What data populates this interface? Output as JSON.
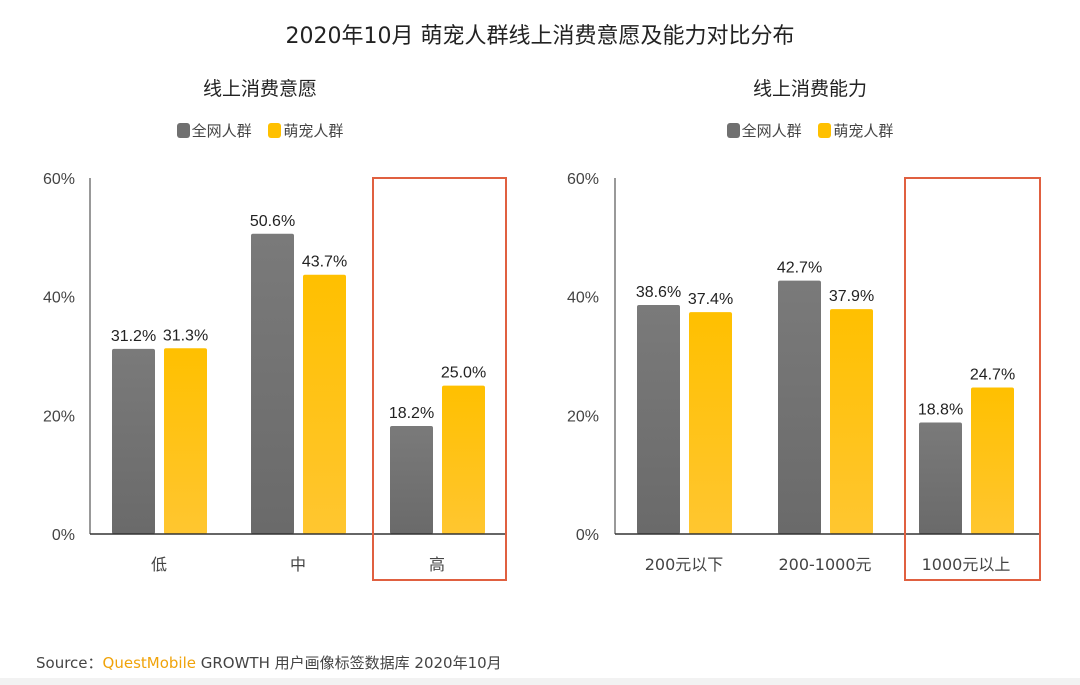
{
  "title": "2020年10月 萌宠人群线上消费意愿及能力对比分布",
  "colors": {
    "all": "#707070",
    "pet": "#ffc000",
    "highlight": "#e06040"
  },
  "chart_data": [
    {
      "type": "bar",
      "title": "线上消费意愿",
      "categories": [
        "低",
        "中",
        "高"
      ],
      "series": [
        {
          "name": "全网人群",
          "values": [
            31.2,
            50.6,
            18.2
          ]
        },
        {
          "name": "萌宠人群",
          "values": [
            31.3,
            43.7,
            25.0
          ]
        }
      ],
      "yticks": [
        "0%",
        "20%",
        "40%",
        "60%"
      ],
      "ylim": [
        0,
        60
      ],
      "legend": "top",
      "highlight_category": "高"
    },
    {
      "type": "bar",
      "title": "线上消费能力",
      "categories": [
        "200元以下",
        "200-1000元",
        "1000元以上"
      ],
      "series": [
        {
          "name": "全网人群",
          "values": [
            38.6,
            42.7,
            18.8
          ]
        },
        {
          "name": "萌宠人群",
          "values": [
            37.4,
            37.9,
            24.7
          ]
        }
      ],
      "yticks": [
        "0%",
        "20%",
        "40%",
        "60%"
      ],
      "ylim": [
        0,
        60
      ],
      "legend": "top",
      "highlight_category": "1000元以上"
    }
  ],
  "source": {
    "prefix": "Source：",
    "brand": "QuestMobile",
    "rest": " GROWTH 用户画像标签数据库 2020年10月"
  }
}
